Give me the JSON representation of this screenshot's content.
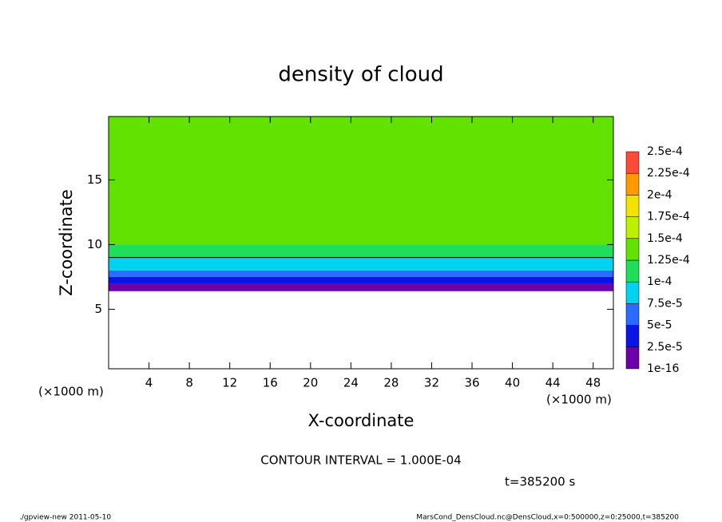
{
  "chart_data": {
    "type": "contour",
    "title": "density of cloud",
    "x_label": "X-coordinate",
    "y_label": "Z-coordinate",
    "x_unit": "(×1000 m)",
    "annotations": [
      "CONTOUR INTERVAL = 1.000E-04",
      "t=385200 s"
    ],
    "footer_left": "./gpview-new  2011-05-10",
    "footer_right": "MarsCond_DensCloud.nc@DensCloud,x=0:500000,z=0:25000,t=385200",
    "xlim": [
      0,
      50
    ],
    "xticks": [
      4,
      8,
      12,
      16,
      20,
      24,
      28,
      32,
      36,
      40,
      44,
      48
    ],
    "ylim": [
      0.4,
      19.9
    ],
    "yticks": [
      5,
      10,
      15
    ],
    "z_bins": [
      6.4,
      7.0,
      7.5,
      8.0,
      9.0,
      10.0,
      19.9
    ],
    "values": [
      5e-06,
      3e-05,
      6e-05,
      8.5e-05,
      0.000115,
      0.00014
    ],
    "contour_level": 0.0001,
    "colorbar_levels": [
      {
        "value": 1e-16,
        "label": "1e-16"
      },
      {
        "value": 2.5e-05,
        "label": "2.5e-5"
      },
      {
        "value": 5e-05,
        "label": "5e-5"
      },
      {
        "value": 7.5e-05,
        "label": "7.5e-5"
      },
      {
        "value": 0.0001,
        "label": "1e-4"
      },
      {
        "value": 0.000125,
        "label": "1.25e-4"
      },
      {
        "value": 0.00015,
        "label": "1.5e-4"
      },
      {
        "value": 0.000175,
        "label": "1.75e-4"
      },
      {
        "value": 0.0002,
        "label": "2e-4"
      },
      {
        "value": 0.000225,
        "label": "2.25e-4"
      },
      {
        "value": 0.00025,
        "label": "2.5e-4"
      }
    ],
    "colorbar_colors": [
      "#6e00aa",
      "#0a14e6",
      "#2a6cff",
      "#00d2f0",
      "#1ede5a",
      "#62e200",
      "#bdf000",
      "#f2e400",
      "#ff9a00",
      "#ff4a3a"
    ]
  }
}
